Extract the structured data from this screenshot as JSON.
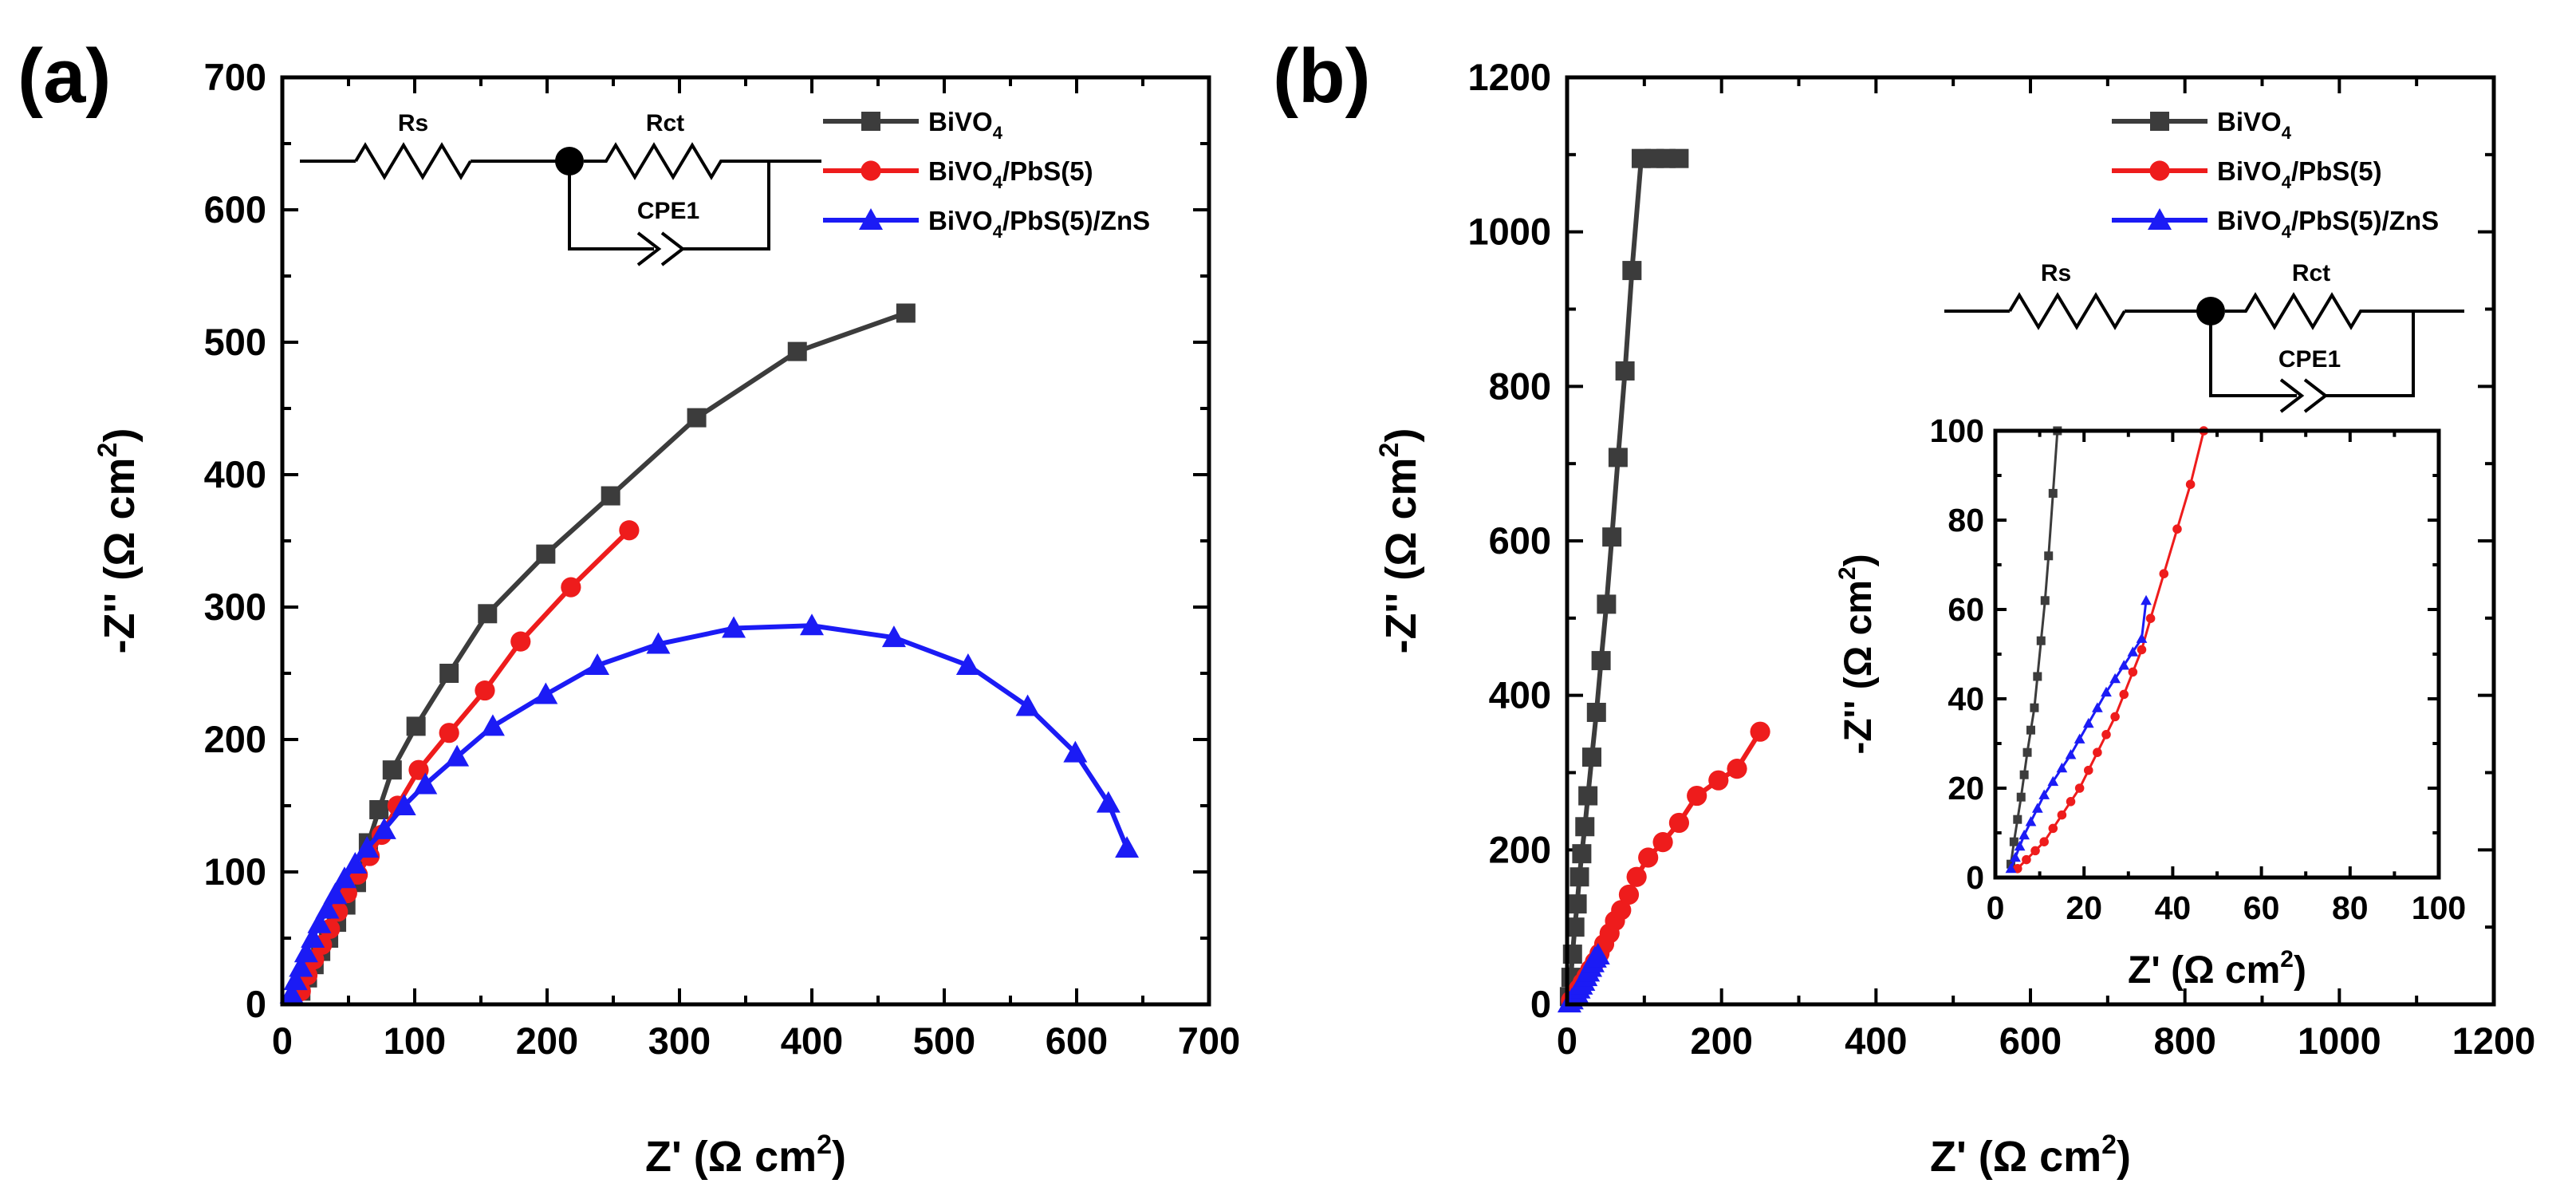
{
  "colors": {
    "BiVO4": "#3c3c3c",
    "BiVO4/PbS(5)": "#ee1c1c",
    "BiVO4/PbS(5)/ZnS": "#1b1bf5"
  },
  "chart_data": [
    {
      "type": "scatter",
      "panel": "(a)",
      "title": "",
      "xlabel": "Z' (Ω cm²)",
      "xlabel_main": "Z' (Ω cm",
      "ylabel_main": "-Z'' (Ω cm",
      "label_sup": "2",
      "label_close": ")",
      "ylabel": "-Z'' (Ω cm²)",
      "xlim": [
        0,
        700
      ],
      "ylim": [
        0,
        700
      ],
      "xticks": [
        "0",
        "100",
        "200",
        "300",
        "400",
        "500",
        "600",
        "700"
      ],
      "yticks": [
        "0",
        "100",
        "200",
        "300",
        "400",
        "500",
        "600",
        "700"
      ],
      "legend": [
        "BiVO4",
        "BiVO4/PbS(5)",
        "BiVO4/PbS(5)/ZnS"
      ],
      "circuit": {
        "rs": "Rs",
        "rct": "Rct",
        "cpe": "CPE1"
      },
      "series": [
        {
          "name": "BiVO4",
          "marker": "square",
          "x": [
            14,
            19,
            24,
            29,
            35,
            41,
            48,
            56,
            65,
            73,
            83,
            101,
            126,
            155,
            199,
            248,
            313,
            389,
            471
          ],
          "y": [
            10,
            20,
            30,
            40,
            50,
            62,
            75,
            92,
            122,
            147,
            177,
            210,
            250,
            295,
            340,
            384,
            443,
            493,
            522
          ]
        },
        {
          "name": "BiVO4/PbS(5)",
          "marker": "circle",
          "x": [
            14,
            19,
            24,
            30,
            36,
            42,
            49,
            57,
            66,
            75,
            87,
            103,
            126,
            153,
            180,
            218,
            262
          ],
          "y": [
            10,
            22,
            34,
            45,
            57,
            70,
            84,
            98,
            112,
            128,
            150,
            177,
            205,
            237,
            274,
            315,
            358
          ]
        },
        {
          "name": "BiVO4/PbS(5)/ZnS",
          "marker": "triangle",
          "x": [
            7,
            10,
            14,
            18,
            23,
            28,
            34,
            40,
            47,
            55,
            64,
            77,
            92,
            108,
            132,
            159,
            199,
            238,
            284,
            341,
            400,
            462,
            518,
            563,
            599,
            624,
            638
          ],
          "y": [
            8,
            18,
            28,
            39,
            50,
            61,
            72,
            83,
            95,
            106,
            118,
            132,
            150,
            166,
            187,
            210,
            234,
            256,
            272,
            284,
            286,
            277,
            256,
            225,
            190,
            152,
            118
          ]
        }
      ]
    },
    {
      "type": "scatter",
      "panel": "(b)",
      "title": "",
      "xlabel": "Z' (Ω cm²)",
      "xlabel_main": "Z' (Ω cm",
      "ylabel_main": "-Z'' (Ω cm",
      "label_sup": "2",
      "label_close": ")",
      "ylabel": "-Z'' (Ω cm²)",
      "xlim": [
        0,
        1200
      ],
      "ylim": [
        0,
        1200
      ],
      "xticks": [
        "0",
        "200",
        "400",
        "600",
        "800",
        "1000",
        "1200"
      ],
      "yticks": [
        "0",
        "200",
        "400",
        "600",
        "800",
        "1000",
        "1200"
      ],
      "legend": [
        "BiVO4",
        "BiVO4/PbS(5)",
        "BiVO4/PbS(5)/ZnS"
      ],
      "circuit": {
        "rs": "Rs",
        "rct": "Rct",
        "cpe": "CPE1"
      },
      "series": [
        {
          "name": "BiVO4",
          "marker": "square",
          "x": [
            3,
            5,
            7,
            10,
            13,
            16,
            19,
            23,
            27,
            32,
            38,
            44,
            51,
            58,
            66,
            75,
            84,
            96,
            113,
            128,
            145
          ],
          "y": [
            10,
            35,
            65,
            100,
            130,
            165,
            195,
            230,
            270,
            320,
            378,
            445,
            518,
            605,
            708,
            820,
            950,
            1095,
            1095,
            1095,
            1095
          ]
        },
        {
          "name": "BiVO4/PbS(5)",
          "marker": "circle",
          "x": [
            5,
            10,
            15,
            20,
            25,
            30,
            36,
            42,
            48,
            55,
            62,
            70,
            80,
            90,
            105,
            124,
            145,
            168,
            196,
            220,
            250
          ],
          "y": [
            5,
            12,
            20,
            28,
            36,
            45,
            55,
            66,
            78,
            92,
            108,
            122,
            142,
            165,
            190,
            210,
            235,
            270,
            290,
            305,
            353
          ]
        },
        {
          "name": "BiVO4/PbS(5)/ZnS",
          "marker": "triangle",
          "x": [
            3,
            6,
            9,
            12,
            15,
            18,
            21,
            24,
            27,
            30,
            33,
            36,
            40
          ],
          "y": [
            2,
            6,
            10,
            15,
            20,
            25,
            30,
            36,
            42,
            48,
            54,
            60,
            64
          ]
        }
      ],
      "inset": {
        "xlim": [
          0,
          100
        ],
        "ylim": [
          0,
          100
        ],
        "xticks": [
          "0",
          "20",
          "40",
          "60",
          "80",
          "100"
        ],
        "yticks": [
          "0",
          "20",
          "40",
          "60",
          "80",
          "100"
        ],
        "xlabel": "Z' (Ω cm²)",
        "ylabel": "-Z'' (Ω cm²)",
        "series": [
          {
            "name": "BiVO4",
            "marker": "square",
            "x": [
              3.5,
              4.2,
              5.0,
              5.8,
              6.5,
              7.2,
              8.0,
              8.8,
              9.5,
              10.3,
              11.2,
              12.0,
              13.0,
              14.0
            ],
            "y": [
              3,
              8,
              13,
              18,
              23,
              28,
              33,
              38,
              45,
              53,
              62,
              72,
              86,
              100
            ]
          },
          {
            "name": "BiVO4/PbS(5)",
            "marker": "circle",
            "x": [
              5,
              7,
              9,
              11,
              13,
              15,
              17,
              19,
              21,
              23,
              25,
              27,
              29,
              31,
              33,
              35,
              38,
              41,
              44,
              47
            ],
            "y": [
              2,
              4,
              6,
              8,
              11,
              14,
              17,
              20,
              24,
              28,
              32,
              36,
              41,
              46,
              51,
              58,
              68,
              78,
              88,
              100
            ]
          },
          {
            "name": "BiVO4/PbS(5)/ZnS",
            "marker": "triangle",
            "x": [
              3.5,
              4.5,
              5.5,
              6.5,
              8,
              9.5,
              11,
              13,
              15,
              17,
              19,
              21,
              23,
              25,
              27,
              29,
              31,
              33,
              34
            ],
            "y": [
              2,
              4.5,
              7,
              9.5,
              12.5,
              15.5,
              18.5,
              21.5,
              24.5,
              27.5,
              31,
              34.5,
              38,
              41.5,
              44.5,
              47.5,
              50.5,
              53.5,
              62
            ]
          }
        ]
      }
    }
  ]
}
